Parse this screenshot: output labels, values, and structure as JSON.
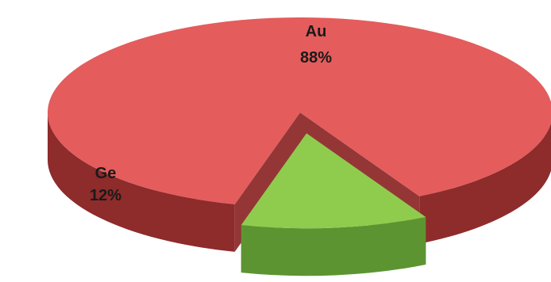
{
  "chart_data": {
    "type": "pie",
    "title": "",
    "slices": [
      {
        "name": "Au",
        "value": 88,
        "label": "88%",
        "color": "#e45c5c",
        "side_color": "#8e2b2b"
      },
      {
        "name": "Ge",
        "value": 12,
        "label": "12%",
        "color": "#8fcc4e",
        "side_color": "#5d9432"
      }
    ],
    "style": "3d-exploded"
  }
}
